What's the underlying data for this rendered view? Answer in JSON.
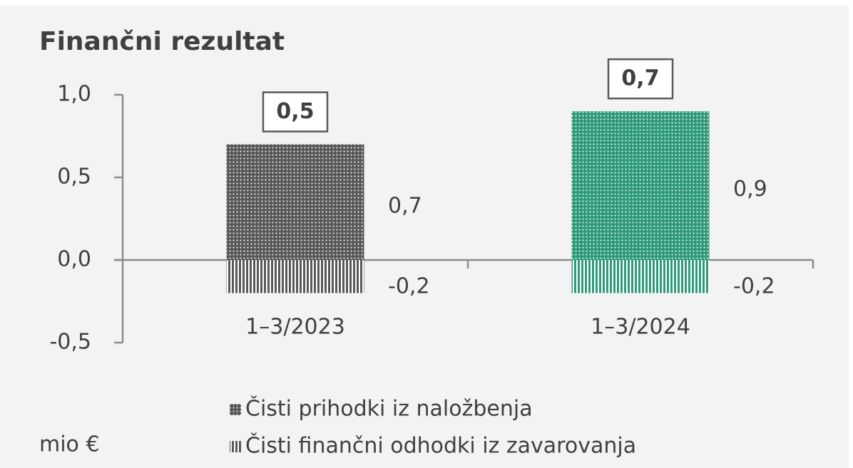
{
  "chart_data": {
    "type": "stacked_bar",
    "title": "Finančni rezultat",
    "unit_label": "mio €",
    "categories": [
      "1–3/2023",
      "1–3/2024"
    ],
    "colors": [
      "#595959",
      "#2e9a7a"
    ],
    "series": [
      {
        "name": "Čisti prihodki iz naložbenja",
        "pattern": "dots",
        "values": [
          0.7,
          0.9
        ],
        "value_labels": [
          "0,7",
          "0,9"
        ]
      },
      {
        "name": "Čisti finančni odhodki iz zavarovanja",
        "pattern": "stripes",
        "values": [
          -0.2,
          -0.2
        ],
        "value_labels": [
          "-0,2",
          "-0,2"
        ]
      }
    ],
    "totals": [
      0.5,
      0.7
    ],
    "total_labels": [
      "0,5",
      "0,7"
    ],
    "ylim": [
      -0.5,
      1.0
    ],
    "yticks": [
      {
        "value": -0.5,
        "label": "-0,5"
      },
      {
        "value": 0,
        "label": "0,0"
      },
      {
        "value": 0.5,
        "label": "0,5"
      },
      {
        "value": 1.0,
        "label": "1,0"
      }
    ],
    "grid": false
  }
}
